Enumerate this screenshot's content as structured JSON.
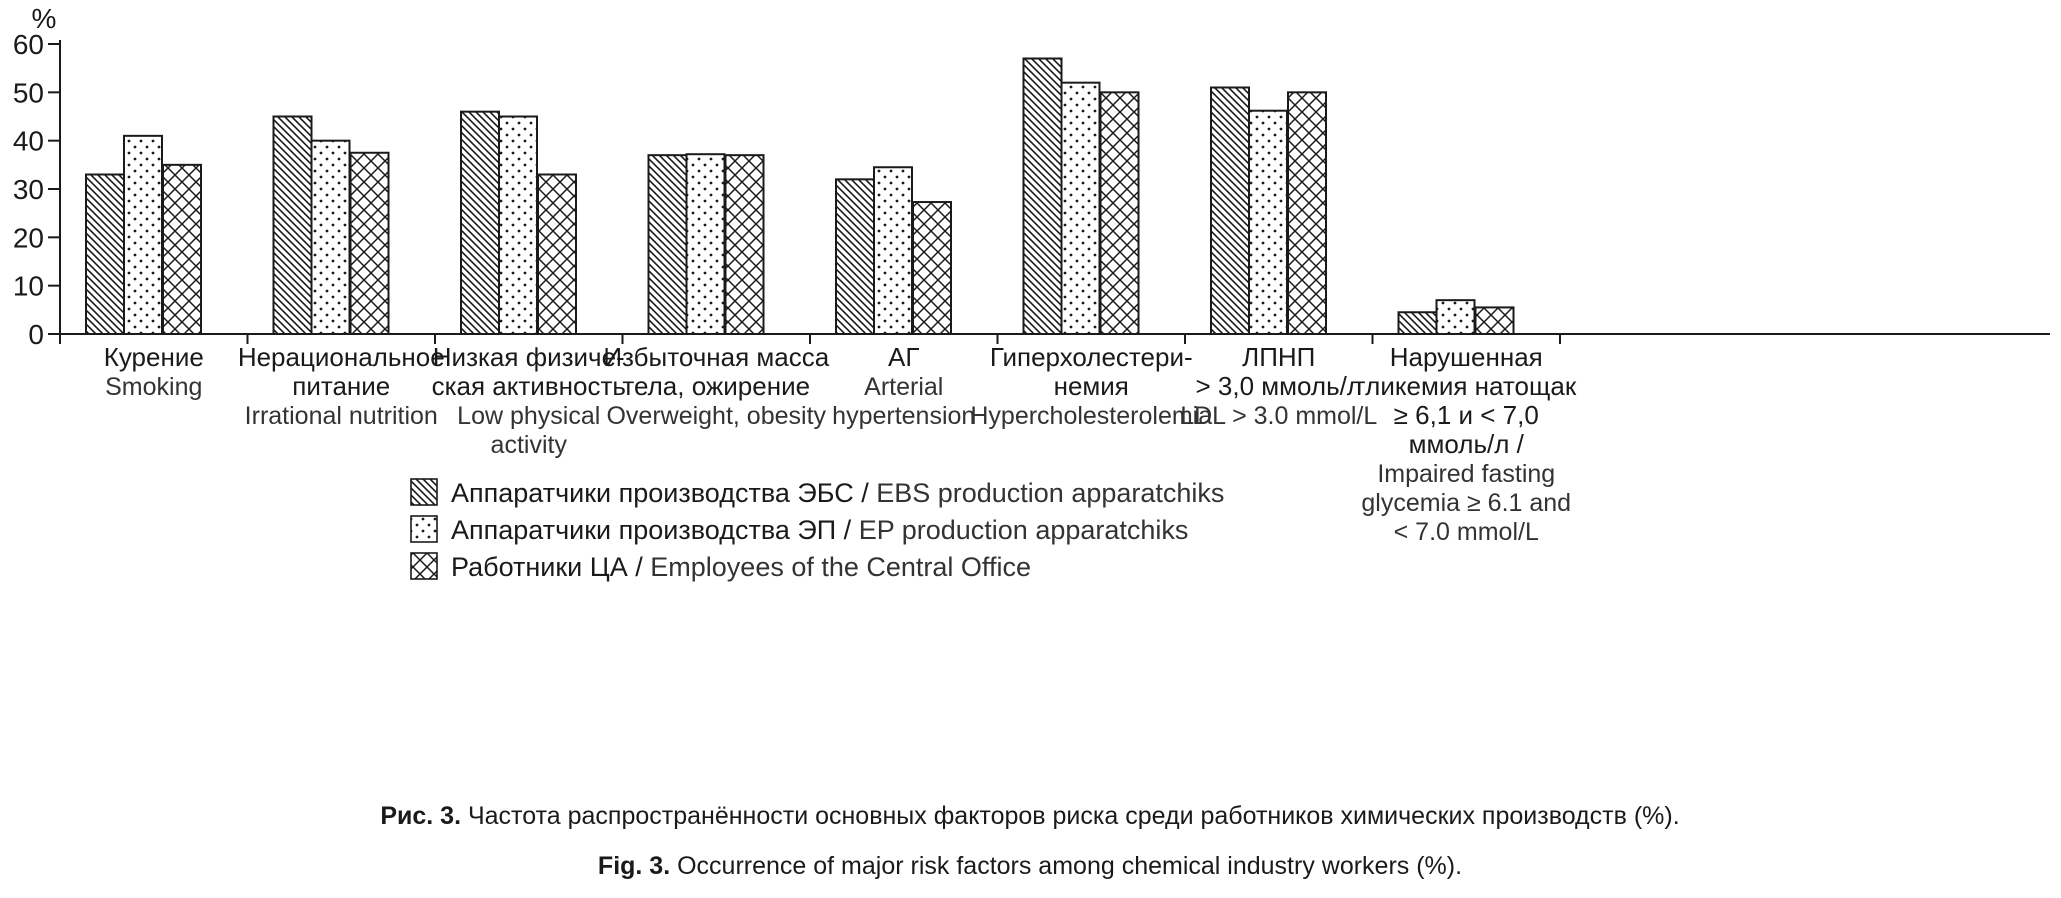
{
  "chart_data": {
    "type": "bar",
    "ylabel": "%",
    "ylim": [
      0,
      60
    ],
    "yticks": [
      0,
      10,
      20,
      30,
      40,
      50,
      60
    ],
    "grid": false,
    "legend_position": "bottom-center",
    "categories": [
      {
        "ru": [
          "Курение"
        ],
        "en": [
          "Smoking"
        ]
      },
      {
        "ru": [
          "Нерациональное",
          "питание"
        ],
        "en": [
          "Irrational nutrition"
        ]
      },
      {
        "ru": [
          "Низкая физиче-",
          "ская активность"
        ],
        "en": [
          "Low physical",
          "activity"
        ]
      },
      {
        "ru": [
          "Избыточная масса",
          "тела, ожирение"
        ],
        "en": [
          "Overweight, obesity"
        ]
      },
      {
        "ru": [
          "АГ"
        ],
        "en": [
          "Arterial",
          "hypertension"
        ]
      },
      {
        "ru": [
          "Гиперхолестери-",
          "немия"
        ],
        "en": [
          "Hypercholesterolemia"
        ]
      },
      {
        "ru": [
          "ЛПНП",
          "> 3,0 ммоль/л"
        ],
        "en": [
          "LDL > 3.0 mmol/L"
        ]
      },
      {
        "ru": [
          "Нарушенная",
          "гликемия натощак",
          "≥ 6,1 и < 7,0",
          "ммоль/л /"
        ],
        "en": [
          "Impaired fasting",
          "glycemia ≥ 6.1 and",
          "< 7.0 mmol/L"
        ]
      }
    ],
    "series": [
      {
        "name_ru": "Аппаратчики производства ЭБС",
        "name_en": "EBS production apparatchiks",
        "pattern": "diagonal-hatch",
        "values": [
          33,
          45,
          46,
          37,
          32,
          57,
          51,
          4.5
        ]
      },
      {
        "name_ru": "Аппаратчики производства ЭП",
        "name_en": "EP production apparatchiks",
        "pattern": "dots",
        "values": [
          41,
          40,
          45,
          37.2,
          34.5,
          52,
          46.2,
          7
        ]
      },
      {
        "name_ru": "Работники ЦА",
        "name_en": "Employees of the Central Office",
        "pattern": "crosshatch",
        "values": [
          35,
          37.5,
          33,
          37,
          27.3,
          50,
          50,
          5.5
        ]
      }
    ]
  },
  "caption": {
    "ru_label": "Рис. 3.",
    "ru_text": " Частота распространённости основных факторов риска среди работников химических производств (%).",
    "en_label": "Fig. 3.",
    "en_text": " Occurrence of major risk factors among chemical industry workers (%)."
  }
}
